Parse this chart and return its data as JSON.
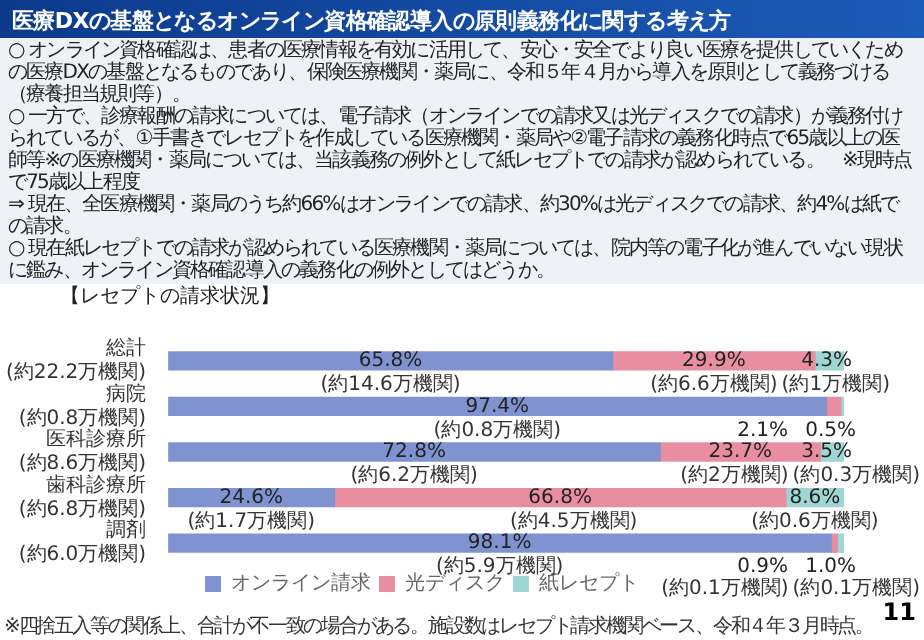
{
  "chart_data": {
    "type": "bar",
    "orientation": "horizontal",
    "stacked": true,
    "title": "医療DXの基盤となるオンライン資格確認導入の原則義務化に関する考え方",
    "categories": [
      "総計\n(約22.2万機関)",
      "病院\n(約0.8万機関)",
      "医科診療所\n(約8.6万機関)",
      "歯科診療所\n(約6.8万機関)",
      "調剤\n(約6.0万機関)"
    ],
    "series": [
      {
        "name": "オンライン請求",
        "color": "#7f93d1",
        "values": [
          65.8,
          97.4,
          72.8,
          24.6,
          98.1
        ],
        "value_labels": [
          "65.8%",
          "97.4%",
          "72.8%",
          "24.6%",
          "98.1%"
        ]
      },
      {
        "name": "光ディスク",
        "color": "#e88ea0",
        "values": [
          29.9,
          2.1,
          23.7,
          66.8,
          0.9
        ],
        "value_labels": [
          "29.9%",
          "2.1%",
          "23.7%",
          "66.8%",
          "0.9%"
        ]
      },
      {
        "name": "紙レセプト",
        "color": "#9dd6d2",
        "values": [
          4.3,
          0.5,
          3.5,
          8.6,
          1.0
        ],
        "value_labels": [
          "4.3%",
          "0.5%",
          "3.5%",
          "8.6%",
          "1.0%"
        ]
      }
    ],
    "legend": "bottom",
    "annotations": [
      "○ オンライン資格確認は、患者の医療情報を有効に活用して、安心・安全でより良い医療を提供していくための医療DXの基盤となるものであり、保険医療機関・薬局に、令和５年４月から導入を原則として義務づける（療養担当規則等）。",
      "○ 一方で、診療報酬の請求については、電子請求（オンラインでの請求又は光ディスクでの請求）が義務付けられているが、①手書きでレセプトを作成している医療機関・薬局や②電子請求の義務化時点で65歳以上の医師等※の医療機関・薬局については、当該義務の例外として紙レセプトでの請求が認められている。　※現時点で75歳以上程度",
      "⇒ 現在、全医療機関・薬局のうち約66%はオンラインでの請求、約30%は光ディスクでの請求、約4%は紙での請求。",
      "○ 現在紙レセプトでの請求が認められている医療機関・薬局については、院内等の電子化が進んでいない現状に鑑み、オンライン資格確認導入の義務化の例外としてはどうか。",
      "【レセプトの請求状況】",
      "※四捨五入等の関係上、合計が不一致の場合がある。施設数はレセプト請求機関ベース、令和４年３月時点。",
      "11",
      {
        "text": "(約14.6万機関)",
        "x": 32.9,
        "y": "総計\n(約22.2万機関)"
      },
      {
        "text": "(約6.6万機関)",
        "x": 80.75,
        "y": "総計\n(約22.2万機関)"
      },
      {
        "text": "(約1万機関)",
        "x": 97.85,
        "y": "総計\n(約22.2万機関)"
      },
      {
        "text": "(約0.8万機関)",
        "x": 48.7,
        "y": "病院\n(約0.8万機関)"
      },
      {
        "text": "(約6.2万機関)",
        "x": 36.4,
        "y": "医科診療所\n(約8.6万機関)"
      },
      {
        "text": "(約2万機関)",
        "x": 84.65,
        "y": "医科診療所\n(約8.6万機関)"
      },
      {
        "text": "(約0.3万機関)",
        "x": 98.25,
        "y": "医科診療所\n(約8.6万機関)"
      },
      {
        "text": "(約1.7万機関)",
        "x": 12.3,
        "y": "歯科診療所\n(約6.8万機関)"
      },
      {
        "text": "(約4.5万機関)",
        "x": 60,
        "y": "歯科診療所\n(約6.8万機関)"
      },
      {
        "text": "(約0.6万機関)",
        "x": 95.7,
        "y": "歯科診療所\n(約6.8万機関)"
      },
      {
        "text": "(約5.9万機関)",
        "x": 49.05,
        "y": "調剤\n(約6.0万機関)"
      },
      {
        "text": "(約0.1万機関)",
        "x": 98.55,
        "y": "調剤\n(約6.0万機関)"
      },
      {
        "text": "(約0.1万機関)",
        "x": 99.5,
        "y": "調剤\n(約6.0万機関)"
      }
    ]
  }
}
